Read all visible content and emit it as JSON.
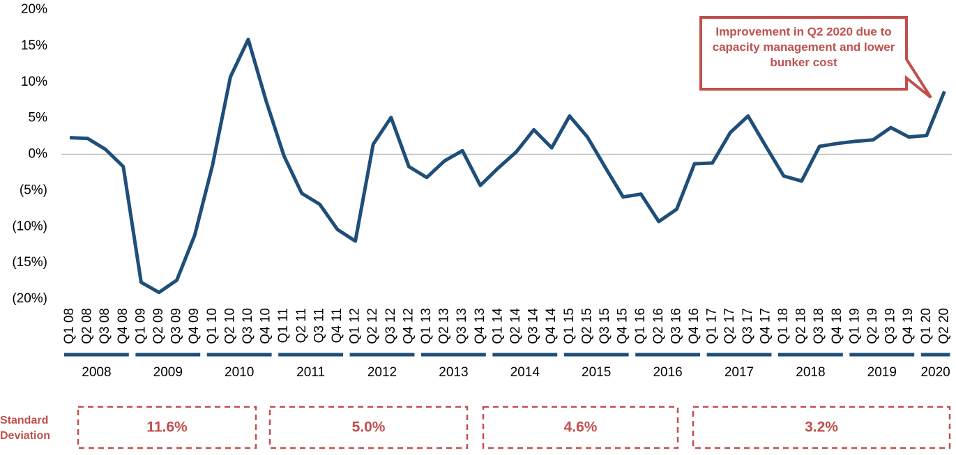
{
  "chart_data": {
    "type": "line",
    "categories": [
      "Q1 08",
      "Q2 08",
      "Q3 08",
      "Q4 08",
      "Q1 09",
      "Q2 09",
      "Q3 09",
      "Q4 09",
      "Q1 10",
      "Q2 10",
      "Q3 10",
      "Q4 10",
      "Q1 11",
      "Q2 11",
      "Q3 11",
      "Q4 11",
      "Q1 12",
      "Q2 12",
      "Q3 12",
      "Q4 12",
      "Q1 13",
      "Q2 13",
      "Q3 13",
      "Q4 13",
      "Q1 14",
      "Q2 14",
      "Q3 14",
      "Q4 14",
      "Q1 15",
      "Q2 15",
      "Q3 15",
      "Q4 15",
      "Q1 16",
      "Q2 16",
      "Q3 16",
      "Q4 16",
      "Q1 17",
      "Q2 17",
      "Q3 17",
      "Q4 17",
      "Q1 18",
      "Q2 18",
      "Q3 18",
      "Q4 18",
      "Q1 19",
      "Q2 19",
      "Q3 19",
      "Q4 19",
      "Q1 20",
      "Q2 20"
    ],
    "values": [
      2.3,
      2.2,
      0.7,
      -1.7,
      -17.7,
      -19.1,
      -17.4,
      -11.2,
      -1.5,
      10.7,
      15.9,
      7.4,
      -0.2,
      -5.4,
      -6.9,
      -10.4,
      -12.0,
      1.4,
      5.1,
      -1.7,
      -3.2,
      -0.9,
      0.5,
      -4.3,
      -1.9,
      0.3,
      3.4,
      0.9,
      5.3,
      2.4,
      -1.8,
      -5.9,
      -5.5,
      -9.3,
      -7.6,
      -1.3,
      -1.2,
      3.0,
      5.3,
      1.1,
      -3.0,
      -3.7,
      1.1,
      1.5,
      1.8,
      2.0,
      3.7,
      2.4,
      2.6,
      8.7
    ],
    "color": "#1f4e79",
    "ylim": [
      -20,
      20
    ],
    "yticks": [
      {
        "value": -20,
        "label": "(20%)"
      },
      {
        "value": -15,
        "label": "(15%)"
      },
      {
        "value": -10,
        "label": "(10%)"
      },
      {
        "value": -5,
        "label": "(5%)"
      },
      {
        "value": 0,
        "label": "0%"
      },
      {
        "value": 5,
        "label": "5%"
      },
      {
        "value": 10,
        "label": "10%"
      },
      {
        "value": 15,
        "label": "15%"
      },
      {
        "value": 20,
        "label": "20%"
      }
    ],
    "year_labels": [
      "2008",
      "2009",
      "2010",
      "2011",
      "2012",
      "2013",
      "2014",
      "2015",
      "2016",
      "2017",
      "2018",
      "2019",
      "2020"
    ],
    "annotation": "Improvement in Q2 2020 due to capacity management and lower bunker cost",
    "std_dev_label": "Standard Deviation",
    "std_dev_values": [
      "11.6%",
      "5.0%",
      "4.6%",
      "3.2%"
    ]
  }
}
